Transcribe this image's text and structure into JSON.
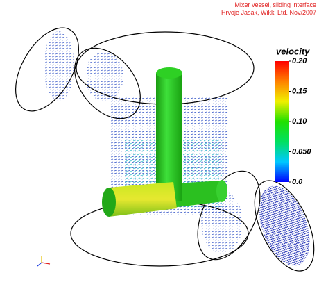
{
  "credits": [
    "Mixer vessel, sliding interface",
    "Hrvoje Jasak, Wikki Ltd. Nov/2007"
  ],
  "colorbar": {
    "title": "velocity",
    "range": [
      0,
      0.2
    ],
    "ticks": [
      {
        "value": 0.2,
        "label": "0.20"
      },
      0.15,
      {
        "value": 0.1,
        "label": "0.10"
      },
      {
        "value": 0.05,
        "label": "0.050"
      },
      {
        "value": 0,
        "label": "0.0"
      }
    ]
  }
}
